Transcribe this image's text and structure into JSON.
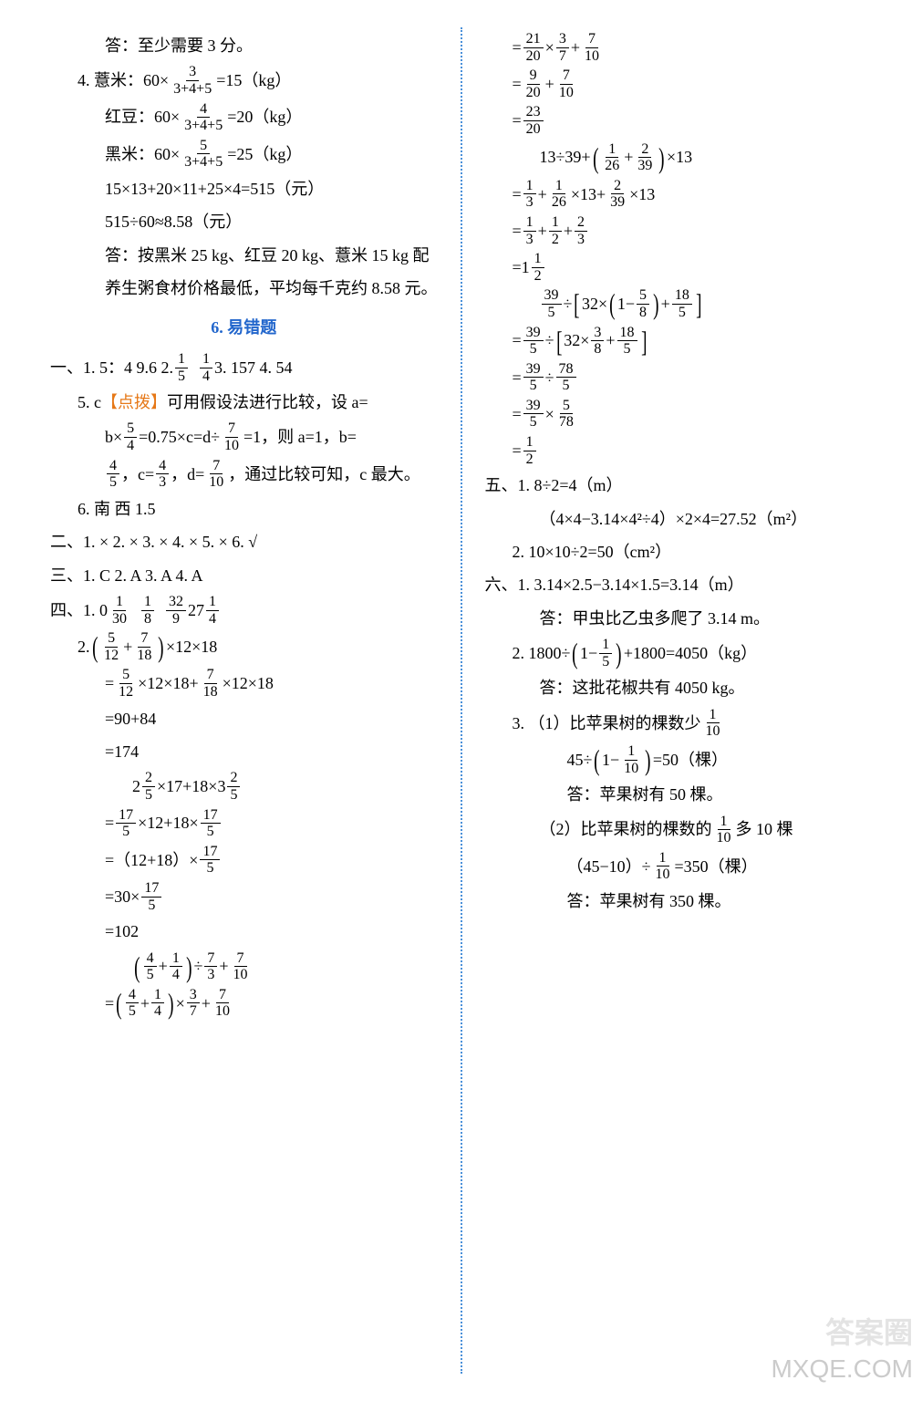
{
  "left": {
    "l1": "答：至少需要 3 分。",
    "l2a": "4. 薏米：60×",
    "l2frac_n": "3",
    "l2frac_d": "3+4+5",
    "l2b": "=15（kg）",
    "l3a": "红豆：60×",
    "l3frac_n": "4",
    "l3frac_d": "3+4+5",
    "l3b": "=20（kg）",
    "l4a": "黑米：60×",
    "l4frac_n": "5",
    "l4frac_d": "3+4+5",
    "l4b": "=25（kg）",
    "l5": "15×13+20×11+25×4=515（元）",
    "l6": "515÷60≈8.58（元）",
    "l7": "答：按黑米 25 kg、红豆 20 kg、薏米 15 kg 配",
    "l8": "养生粥食材价格最低，平均每千克约 8.58 元。",
    "sec6": "6. 易错题",
    "q1_1a": "一、1. 5：4  9.6  2. ",
    "q1_1f1n": "1",
    "q1_1f1d": "5",
    "q1_1f2n": "1",
    "q1_1f2d": "4",
    "q1_1b": "  3. 157  4. 54",
    "q1_5a": "5. c  ",
    "q1_5hint": "【点拨】",
    "q1_5b": "可用假设法进行比较，设 a=",
    "q1_5c": "b×",
    "q1_5f1n": "5",
    "q1_5f1d": "4",
    "q1_5d": "=0.75×c=d÷",
    "q1_5f2n": "7",
    "q1_5f2d": "10",
    "q1_5e": "=1，则 a=1，b=",
    "q1_5f3n": "4",
    "q1_5f3d": "5",
    "q1_5f": "，c=",
    "q1_5f4n": "4",
    "q1_5f4d": "3",
    "q1_5g": "，d=",
    "q1_5f5n": "7",
    "q1_5f5d": "10",
    "q1_5h": "，通过比较可知，c 最大。",
    "q1_6": "6. 南  西  1.5",
    "q2": "二、1. ×  2. ×  3. ×  4. ×  5. ×  6. √",
    "q3": "三、1. C  2. A  3. A  4. A",
    "q4_1a": "四、1. 0  ",
    "q4_1f1n": "1",
    "q4_1f1d": "30",
    "q4_1f2n": "1",
    "q4_1f2d": "8",
    "q4_1f3n": "32",
    "q4_1f3d": "9",
    "q4_1b": "  27  ",
    "q4_1f4n": "1",
    "q4_1f4d": "4",
    "q4_2a": "2. ",
    "q4_2f1n": "5",
    "q4_2f1d": "12",
    "q4_2b": "+",
    "q4_2f2n": "7",
    "q4_2f2d": "18",
    "q4_2c": "×12×18",
    "q4_2d": "=",
    "q4_2f3n": "5",
    "q4_2f3d": "12",
    "q4_2e": "×12×18+",
    "q4_2f4n": "7",
    "q4_2f4d": "18",
    "q4_2f": "×12×18",
    "q4_2g": "=90+84",
    "q4_2h": "=174",
    "q4_2i": "2",
    "q4_2f5n": "2",
    "q4_2f5d": "5",
    "q4_2j": "×17+18×3",
    "q4_2f6n": "2",
    "q4_2f6d": "5",
    "q4_2k": "=",
    "q4_2f7n": "17",
    "q4_2f7d": "5",
    "q4_2l": "×12+18×",
    "q4_2f8n": "17",
    "q4_2f8d": "5",
    "q4_2m": "=（12+18）×",
    "q4_2f9n": "17",
    "q4_2f9d": "5",
    "q4_2n": "=30×",
    "q4_2f10n": "17",
    "q4_2f10d": "5",
    "q4_2o": "=102",
    "q4_2p": "",
    "q4_2f11n": "4",
    "q4_2f11d": "5",
    "q4_2q": "+",
    "q4_2f12n": "1",
    "q4_2f12d": "4",
    "q4_2r": "÷",
    "q4_2f13n": "7",
    "q4_2f13d": "3",
    "q4_2s": "+",
    "q4_2f14n": "7",
    "q4_2f14d": "10",
    "q4_2t": "=",
    "q4_2f15n": "4",
    "q4_2f15d": "5",
    "q4_2u": "+",
    "q4_2f16n": "1",
    "q4_2f16d": "4",
    "q4_2v": "×",
    "q4_2f17n": "3",
    "q4_2f17d": "7",
    "q4_2w": "+",
    "q4_2f18n": "7",
    "q4_2f18d": "10"
  },
  "right": {
    "r1a": "=",
    "r1f1n": "21",
    "r1f1d": "20",
    "r1b": "×",
    "r1f2n": "3",
    "r1f2d": "7",
    "r1c": "+",
    "r1f3n": "7",
    "r1f3d": "10",
    "r2a": "=",
    "r2f1n": "9",
    "r2f1d": "20",
    "r2b": "+",
    "r2f2n": "7",
    "r2f2d": "10",
    "r3a": "=",
    "r3f1n": "23",
    "r3f1d": "20",
    "r4a": "13÷39+",
    "r4f1n": "1",
    "r4f1d": "26",
    "r4b": "+",
    "r4f2n": "2",
    "r4f2d": "39",
    "r4c": "×13",
    "r5a": "=",
    "r5f1n": "1",
    "r5f1d": "3",
    "r5b": "+",
    "r5f2n": "1",
    "r5f2d": "26",
    "r5c": "×13+",
    "r5f3n": "2",
    "r5f3d": "39",
    "r5d": "×13",
    "r6a": "=",
    "r6f1n": "1",
    "r6f1d": "3",
    "r6b": "+",
    "r6f2n": "1",
    "r6f2d": "2",
    "r6c": "+",
    "r6f3n": "2",
    "r6f3d": "3",
    "r7a": "=1",
    "r7f1n": "1",
    "r7f1d": "2",
    "r8f1n": "39",
    "r8f1d": "5",
    "r8a": "÷",
    "r8b": "32×",
    "r8c": "1−",
    "r8f2n": "5",
    "r8f2d": "8",
    "r8d": "+",
    "r8f3n": "18",
    "r8f3d": "5",
    "r9a": "=",
    "r9f1n": "39",
    "r9f1d": "5",
    "r9b": "÷",
    "r9c": "32×",
    "r9f2n": "3",
    "r9f2d": "8",
    "r9d": "+",
    "r9f3n": "18",
    "r9f3d": "5",
    "r10a": "=",
    "r10f1n": "39",
    "r10f1d": "5",
    "r10b": "÷",
    "r10f2n": "78",
    "r10f2d": "5",
    "r11a": "=",
    "r11f1n": "39",
    "r11f1d": "5",
    "r11b": "×",
    "r11f2n": "5",
    "r11f2d": "78",
    "r12a": "=",
    "r12f1n": "1",
    "r12f1d": "2",
    "q5_1a": "五、1. 8÷2=4（m）",
    "q5_1b": "（4×4−3.14×4²÷4）×2×4=27.52（m²）",
    "q5_2": "2. 10×10÷2=50（cm²）",
    "q6_1a": "六、1. 3.14×2.5−3.14×1.5=3.14（m）",
    "q6_1b": "答：甲虫比乙虫多爬了 3.14 m。",
    "q6_2a": "2. 1800÷",
    "q6_2b": "1−",
    "q6_2f1n": "1",
    "q6_2f1d": "5",
    "q6_2c": "+1800=4050（kg）",
    "q6_2d": "答：这批花椒共有 4050 kg。",
    "q6_3a": "3. （1）比苹果树的棵数少",
    "q6_3f1n": "1",
    "q6_3f1d": "10",
    "q6_3b": "45÷",
    "q6_3c": "1−",
    "q6_3f2n": "1",
    "q6_3f2d": "10",
    "q6_3d": "=50（棵）",
    "q6_3e": "答：苹果树有 50 棵。",
    "q6_3f": "（2）比苹果树的棵数的",
    "q6_3f3n": "1",
    "q6_3f3d": "10",
    "q6_3g": "多 10 棵",
    "q6_3h": "（45−10）÷",
    "q6_3f4n": "1",
    "q6_3f4d": "10",
    "q6_3i": "=350（棵）",
    "q6_3j": "答：苹果树有 350 棵。"
  },
  "wm1": "答案圈",
  "wm2": "MXQE.COM"
}
